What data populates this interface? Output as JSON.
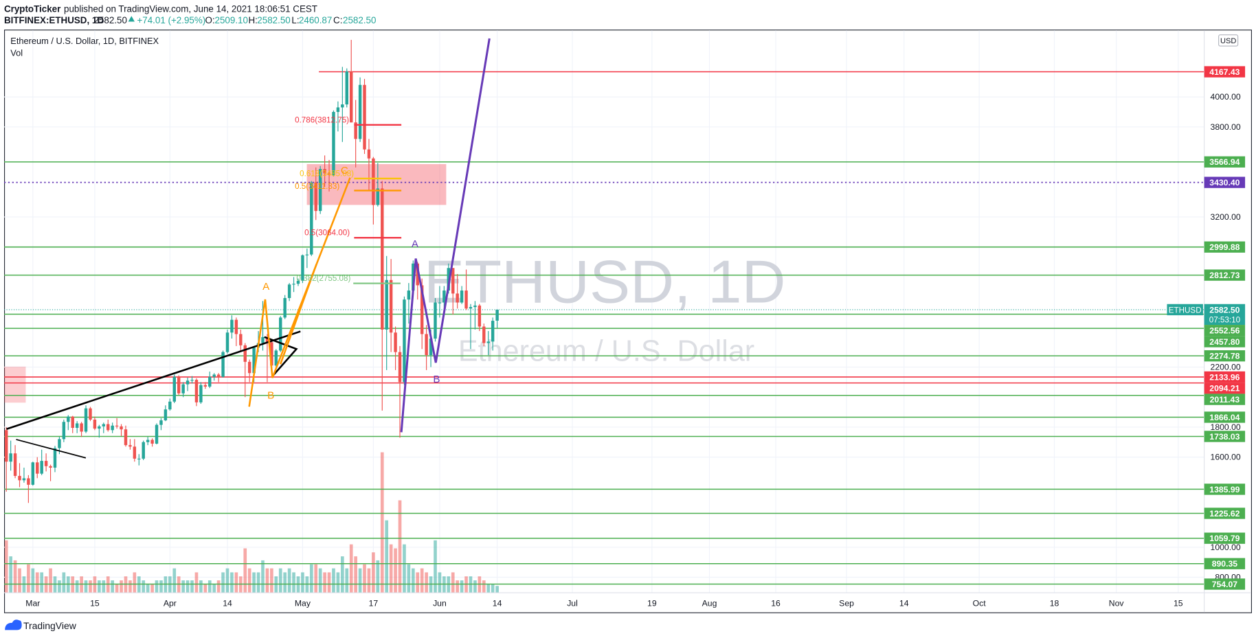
{
  "header": {
    "author": "CryptoTicker",
    "published": "published on TradingView.com, June 14, 2021 18:06:51 CEST",
    "symbol": "BITFINEX:ETHUSD, 1D",
    "price": "2582.50",
    "change": "+74.01 (+2.95%)",
    "open_label": "O:",
    "open": "2509.10",
    "high_label": "H:",
    "high": "2582.50",
    "low_label": "L:",
    "low": "2460.87",
    "close_label": "C:",
    "close": "2582.50"
  },
  "chart_data": {
    "type": "candlestick",
    "title": "Ethereum / U.S. Dollar, 1D, BITFINEX",
    "volume_label": "Vol",
    "watermark": "ETHUSD, 1D",
    "watermark_subtitle": "Ethereum / U.S. Dollar",
    "currency": "USD",
    "up_color": "#26a69a",
    "down_color": "#ef5350",
    "x": [
      0,
      1,
      2,
      3,
      4,
      5,
      6,
      7,
      8,
      9,
      10,
      11,
      12,
      13,
      14,
      15,
      16,
      17,
      18,
      19,
      20,
      21,
      22,
      23,
      24,
      25,
      26,
      27,
      28,
      29,
      30,
      31,
      32,
      33,
      34,
      35,
      36,
      37,
      38,
      39,
      40,
      41,
      42,
      43,
      44,
      45,
      46,
      47,
      48,
      49,
      50,
      51,
      52,
      53,
      54,
      55,
      56,
      57,
      58,
      59,
      60,
      61,
      62,
      63,
      64,
      65,
      66,
      67,
      68,
      69,
      70,
      71,
      72,
      73,
      74,
      75,
      76,
      77,
      78,
      79,
      80,
      81,
      82,
      83,
      84,
      85,
      86,
      87,
      88,
      89,
      90,
      91,
      92,
      93,
      94,
      95,
      96,
      97,
      98,
      99,
      100,
      101,
      102,
      103,
      104,
      105,
      106,
      107,
      108,
      109,
      110,
      111
    ],
    "open": [
      1780,
      1570,
      1625,
      1475,
      1446,
      1459,
      1416,
      1565,
      1490,
      1575,
      1540,
      1530,
      1660,
      1720,
      1835,
      1870,
      1795,
      1825,
      1770,
      1925,
      1850,
      1790,
      1805,
      1820,
      1780,
      1810,
      1805,
      1785,
      1680,
      1670,
      1590,
      1590,
      1700,
      1715,
      1690,
      1815,
      1845,
      1918,
      1970,
      2135,
      2025,
      2085,
      2110,
      2115,
      1965,
      2080,
      2070,
      2135,
      2150,
      2135,
      2300,
      2430,
      2515,
      2420,
      2345,
      2235,
      2160,
      2330,
      2360,
      2400,
      2365,
      2210,
      2310,
      2530,
      2660,
      2750,
      2755,
      2775,
      2945,
      2950,
      3430,
      3240,
      3520,
      3490,
      3480,
      3900,
      3930,
      3950,
      4170,
      3830,
      3720,
      4080,
      3650,
      3590,
      3280,
      3390,
      2450,
      2780,
      2430,
      2300,
      2100,
      2650,
      2710,
      2890,
      2745,
      2420,
      2280,
      2390,
      2630,
      2630,
      2710,
      2860,
      2690,
      2630,
      2710,
      2590,
      2600,
      2610,
      2470,
      2360,
      2370,
      2509.1
    ],
    "high": [
      1800,
      1710,
      1680,
      1560,
      1530,
      1480,
      1570,
      1600,
      1650,
      1625,
      1550,
      1675,
      1735,
      1850,
      1880,
      1875,
      1840,
      1835,
      1945,
      1935,
      1870,
      1815,
      1830,
      1850,
      1830,
      1860,
      1820,
      1810,
      1720,
      1720,
      1620,
      1710,
      1735,
      1725,
      1825,
      1860,
      1945,
      1990,
      2150,
      2145,
      2100,
      2130,
      2140,
      2125,
      2100,
      2100,
      2170,
      2160,
      2160,
      2310,
      2450,
      2545,
      2530,
      2450,
      2360,
      2250,
      2340,
      2440,
      2640,
      2420,
      2370,
      2320,
      2540,
      2680,
      2760,
      2800,
      2790,
      2950,
      2990,
      3440,
      3530,
      3540,
      3610,
      3580,
      3910,
      3970,
      4200,
      4190,
      4380,
      3980,
      4130,
      4120,
      3720,
      3600,
      3560,
      3440,
      2940,
      2920,
      2470,
      2340,
      2670,
      2760,
      2910,
      2900,
      2790,
      2480,
      2450,
      2660,
      2740,
      2740,
      2890,
      2860,
      2820,
      2740,
      2850,
      2620,
      2640,
      2620,
      2490,
      2440,
      2530,
      2582.5
    ],
    "low": [
      1370,
      1510,
      1460,
      1400,
      1430,
      1295,
      1410,
      1460,
      1480,
      1505,
      1440,
      1500,
      1620,
      1700,
      1780,
      1760,
      1760,
      1735,
      1760,
      1840,
      1780,
      1730,
      1760,
      1770,
      1760,
      1790,
      1740,
      1670,
      1650,
      1570,
      1545,
      1580,
      1680,
      1670,
      1685,
      1780,
      1840,
      1910,
      1960,
      2015,
      2000,
      2040,
      2090,
      1940,
      1955,
      2055,
      2060,
      2110,
      2100,
      2130,
      2290,
      2390,
      2340,
      2300,
      2000,
      2100,
      2100,
      2300,
      2310,
      2100,
      2180,
      2190,
      2300,
      2520,
      2640,
      2700,
      2740,
      2760,
      2860,
      2940,
      3180,
      3220,
      3400,
      3370,
      3470,
      3770,
      3700,
      3930,
      3830,
      3530,
      3700,
      3620,
      3380,
      3150,
      3270,
      1910,
      2180,
      2300,
      2180,
      1730,
      2080,
      2490,
      2690,
      2650,
      2320,
      2180,
      2200,
      2370,
      2530,
      2580,
      2690,
      2550,
      2590,
      2620,
      2580,
      2320,
      2450,
      2440,
      2340,
      2280,
      2310,
      2460.87
    ],
    "close": [
      1570,
      1625,
      1475,
      1446,
      1459,
      1416,
      1565,
      1490,
      1575,
      1540,
      1530,
      1660,
      1720,
      1835,
      1870,
      1795,
      1825,
      1770,
      1925,
      1850,
      1790,
      1805,
      1820,
      1780,
      1810,
      1805,
      1785,
      1680,
      1670,
      1590,
      1590,
      1700,
      1715,
      1690,
      1815,
      1845,
      1918,
      1970,
      2135,
      2025,
      2085,
      2110,
      2115,
      1965,
      2080,
      2070,
      2135,
      2150,
      2135,
      2300,
      2430,
      2515,
      2420,
      2345,
      2235,
      2160,
      2330,
      2360,
      2400,
      2365,
      2210,
      2310,
      2530,
      2660,
      2750,
      2755,
      2775,
      2945,
      2950,
      3430,
      3240,
      3520,
      3490,
      3480,
      3900,
      3930,
      3950,
      4170,
      3830,
      3720,
      4080,
      3650,
      3590,
      3280,
      3390,
      2450,
      2780,
      2430,
      2300,
      2100,
      2650,
      2710,
      2890,
      2745,
      2420,
      2280,
      2390,
      2630,
      2630,
      2710,
      2860,
      2690,
      2630,
      2710,
      2590,
      2600,
      2610,
      2470,
      2360,
      2370,
      2508.49,
      2582.5
    ],
    "volume": [
      65,
      45,
      40,
      30,
      20,
      35,
      30,
      25,
      25,
      20,
      30,
      20,
      15,
      25,
      20,
      20,
      15,
      20,
      15,
      15,
      20,
      15,
      15,
      20,
      15,
      10,
      15,
      20,
      15,
      25,
      20,
      15,
      10,
      10,
      15,
      15,
      20,
      20,
      30,
      20,
      15,
      15,
      15,
      25,
      15,
      10,
      15,
      10,
      15,
      25,
      30,
      25,
      25,
      20,
      55,
      30,
      25,
      25,
      40,
      30,
      30,
      20,
      30,
      25,
      30,
      25,
      20,
      25,
      20,
      35,
      35,
      30,
      25,
      25,
      30,
      25,
      45,
      30,
      60,
      45,
      30,
      35,
      30,
      50,
      40,
      175,
      90,
      60,
      55,
      115,
      60,
      35,
      30,
      25,
      30,
      25,
      20,
      65,
      25,
      20,
      20,
      25,
      15,
      15,
      20,
      20,
      15,
      20,
      15,
      10,
      10,
      8
    ],
    "xlim": [
      -0.5,
      270.8
    ],
    "xticks": [
      {
        "value": 6,
        "label": "Mar"
      },
      {
        "value": 20,
        "label": "15"
      },
      {
        "value": 37,
        "label": "Apr"
      },
      {
        "value": 50,
        "label": "14"
      },
      {
        "value": 67,
        "label": "May"
      },
      {
        "value": 83,
        "label": "17"
      },
      {
        "value": 98,
        "label": "Jun"
      },
      {
        "value": 111,
        "label": "14"
      },
      {
        "value": 128,
        "label": "Jul"
      },
      {
        "value": 146,
        "label": "19"
      },
      {
        "value": 159,
        "label": "Aug"
      },
      {
        "value": 174,
        "label": "16"
      },
      {
        "value": 190,
        "label": "Sep"
      },
      {
        "value": 203,
        "label": "14"
      },
      {
        "value": 220,
        "label": "Oct"
      },
      {
        "value": 237,
        "label": "18"
      },
      {
        "value": 251,
        "label": "Nov"
      },
      {
        "value": 265,
        "label": "15"
      }
    ],
    "ylim": [
      699,
      4443
    ],
    "yticks": [
      {
        "value": 4000,
        "label": "4000.00"
      },
      {
        "value": 3800,
        "label": "3800.00"
      },
      {
        "value": 3200,
        "label": "3200.00"
      },
      {
        "value": 2200,
        "label": "2200.00"
      },
      {
        "value": 1800,
        "label": "1800.00"
      },
      {
        "value": 1600,
        "label": "1600.00"
      },
      {
        "value": 1000,
        "label": "1000.00"
      },
      {
        "value": 800,
        "label": "800.00"
      }
    ],
    "grid": true,
    "levels": [
      {
        "value": 4167.43,
        "color": "#f23645"
      },
      {
        "value": 3566.94,
        "color": "#4caf50"
      },
      {
        "value": 3430.4,
        "label": "3430.40",
        "color": "#673ab7",
        "style": "dotted"
      },
      {
        "value": 2999.88,
        "color": "#4caf50"
      },
      {
        "value": 2812.73,
        "color": "#4caf50"
      },
      {
        "value": 2552.56,
        "color": "#4caf50"
      },
      {
        "value": 2457.8,
        "label": "2457.80",
        "color": "#4caf50"
      },
      {
        "value": 2274.78,
        "color": "#4caf50"
      },
      {
        "value": 2133.96,
        "color": "#f23645"
      },
      {
        "value": 2094.21,
        "color": "#f23645"
      },
      {
        "value": 2011.43,
        "color": "#4caf50"
      },
      {
        "value": 1866.04,
        "color": "#4caf50"
      },
      {
        "value": 1738.03,
        "color": "#4caf50"
      },
      {
        "value": 1385.99,
        "color": "#4caf50"
      },
      {
        "value": 1225.62,
        "color": "#4caf50"
      },
      {
        "value": 1059.79,
        "color": "#4caf50"
      },
      {
        "value": 890.35,
        "color": "#4caf50"
      },
      {
        "value": 754.07,
        "color": "#4caf50"
      }
    ],
    "last_price": {
      "value": 2582.5,
      "label": "2582.50",
      "symbol": "ETHUSD",
      "countdown": "07:53:10",
      "color": "#26a69a"
    },
    "fib": [
      {
        "label": "0.786(3812.75)",
        "color": "#f23645"
      },
      {
        "label": "0.618(3485.08)",
        "color": "#f9c30b"
      },
      {
        "label": "0.5(3411.33)",
        "color": "#ff9800"
      },
      {
        "label": "0.5(3064.00)",
        "color": "#f23645"
      },
      {
        "label": "0.382(2755.08)",
        "color": "#81c784"
      }
    ],
    "pattern_labels": [
      {
        "text": "A",
        "color": "#ff9800"
      },
      {
        "text": "B",
        "color": "#ff9800"
      },
      {
        "text": "C",
        "color": "#ff9800"
      },
      {
        "text": "A",
        "color": "#673ab7"
      },
      {
        "text": "B",
        "color": "#673ab7"
      }
    ]
  },
  "footer": {
    "brand": "TradingView"
  }
}
